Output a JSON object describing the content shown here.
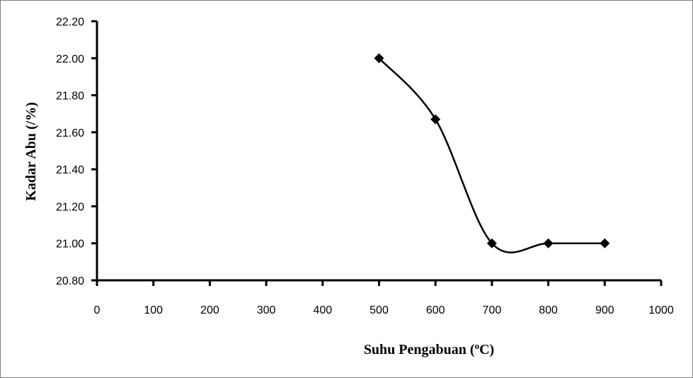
{
  "chart_data": {
    "type": "scatter",
    "title": "",
    "xlabel": "Suhu Pengabuan (",
    "xlabel_sup": "o",
    "xlabel_tail": "C)",
    "ylabel": "Kadar Abu (/%)",
    "xlim": [
      0,
      1000
    ],
    "ylim": [
      20.8,
      22.2
    ],
    "xticks": [
      "0",
      "100",
      "200",
      "300",
      "400",
      "500",
      "600",
      "700",
      "800",
      "900",
      "1000"
    ],
    "yticks": [
      "20.80",
      "21.00",
      "21.20",
      "21.40",
      "21.60",
      "21.80",
      "22.00",
      "22.20"
    ],
    "grid": false,
    "legend": "none",
    "line_style": "smooth",
    "marker": "diamond",
    "series": [
      {
        "x": [
          500,
          600,
          700,
          800,
          900
        ],
        "y": [
          22.0,
          21.67,
          21.0,
          21.0,
          21.0
        ]
      }
    ],
    "colors": {
      "line": "#000000",
      "marker": "#000000"
    }
  }
}
